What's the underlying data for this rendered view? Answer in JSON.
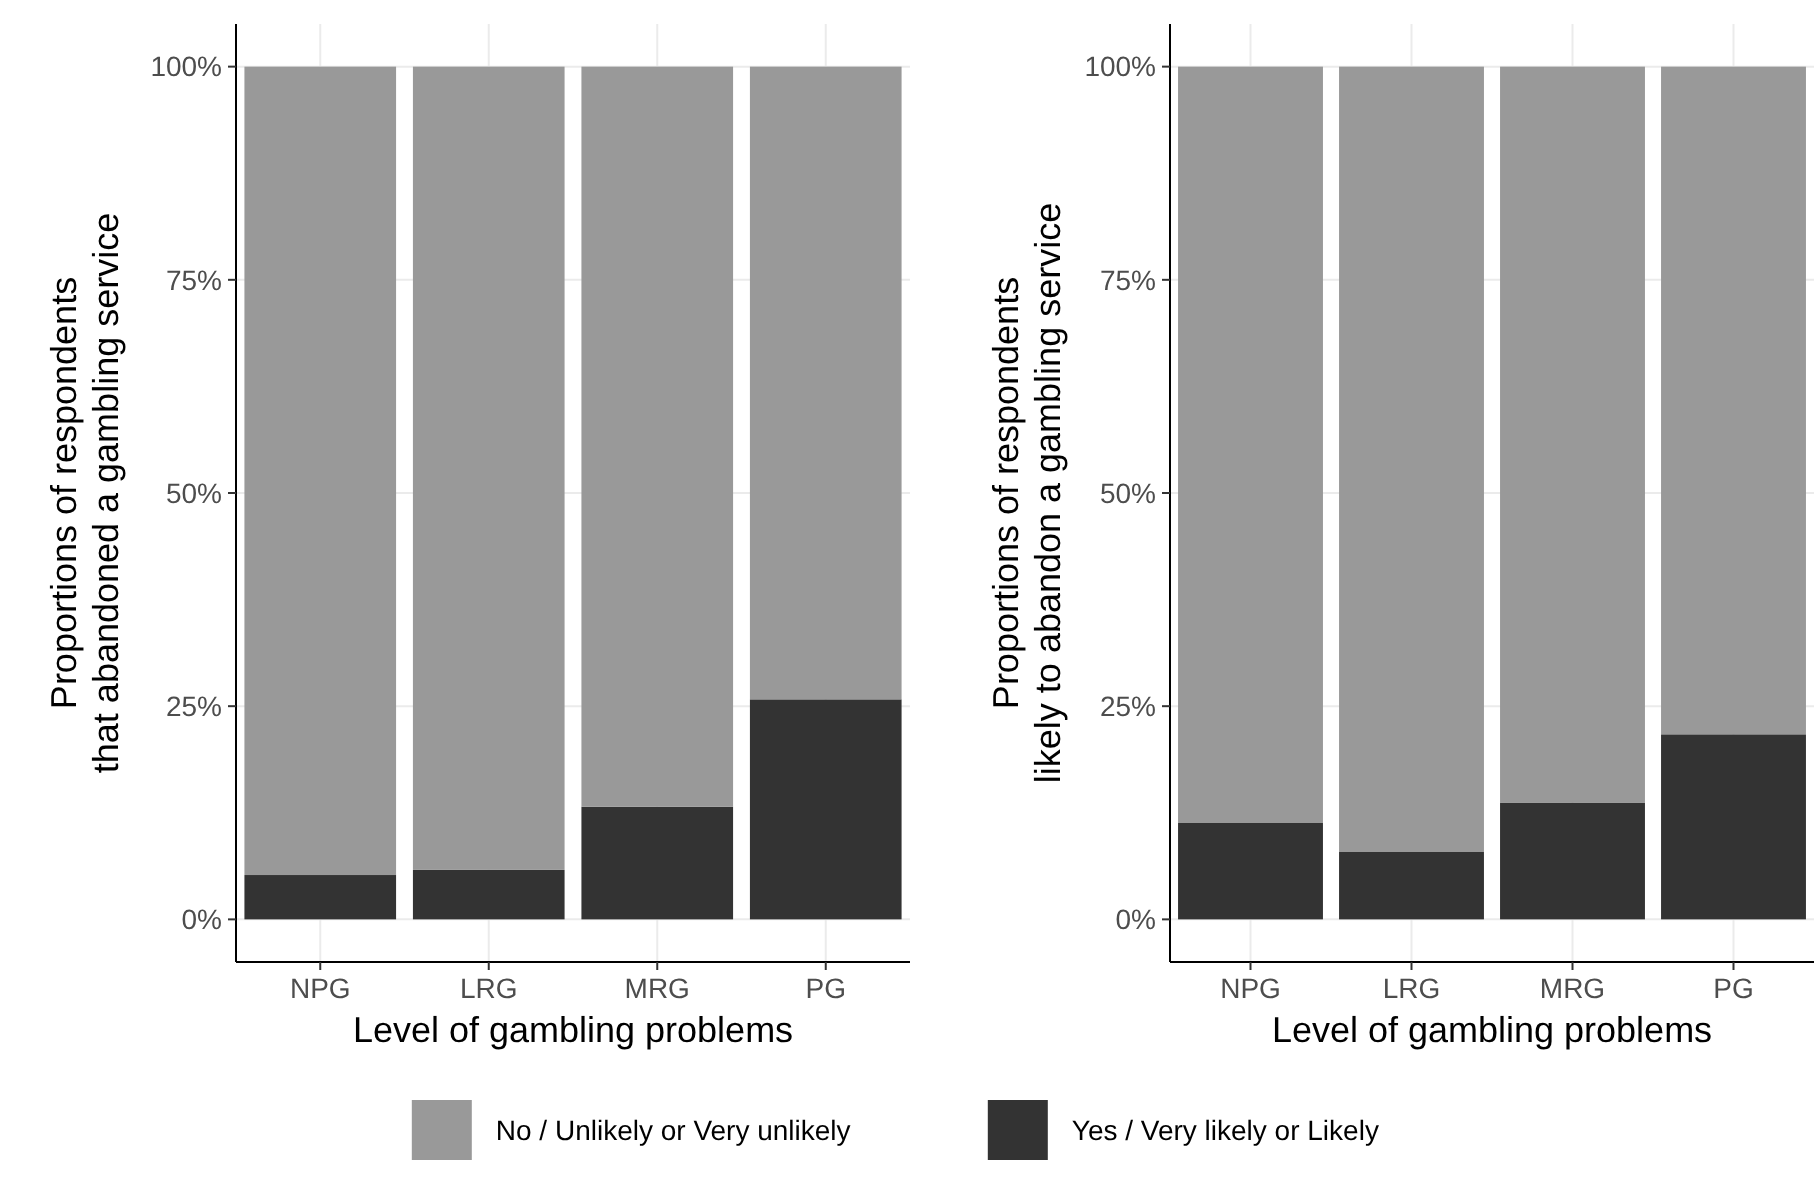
{
  "chart_data": [
    {
      "type": "bar",
      "stacked": true,
      "xlabel": "Level of gambling problems",
      "ylabel": "Proportions of respondents\nthat abandoned a gambling service",
      "categories": [
        "NPG",
        "LRG",
        "MRG",
        "PG"
      ],
      "series": [
        {
          "name": "Yes / Very likely or Likely",
          "color": "#333333",
          "values": [
            5.2,
            5.8,
            13.2,
            25.8
          ]
        },
        {
          "name": "No / Unlikely or Very unlikely",
          "color": "#999999",
          "values": [
            94.8,
            94.2,
            86.8,
            74.2
          ]
        }
      ],
      "ylim": [
        -5,
        105
      ],
      "yticks": [
        {
          "value": 0,
          "label": "0%"
        },
        {
          "value": 25,
          "label": "25%"
        },
        {
          "value": 50,
          "label": "50%"
        },
        {
          "value": 75,
          "label": "75%"
        },
        {
          "value": 100,
          "label": "100%"
        }
      ],
      "grid": true,
      "legend": "bottom"
    },
    {
      "type": "bar",
      "stacked": true,
      "xlabel": "Level of gambling problems",
      "ylabel": "Proportions of respondents\nlikely to abandon a gambling service",
      "categories": [
        "NPG",
        "LRG",
        "MRG",
        "PG"
      ],
      "series": [
        {
          "color": "#333333",
          "values": [
            11.3,
            7.9,
            13.7,
            21.7
          ]
        },
        {
          "color": "#999999",
          "values": [
            88.7,
            92.1,
            86.3,
            78.3
          ]
        }
      ],
      "ylim": [
        -5,
        105
      ],
      "yticks": [
        {
          "value": 0,
          "label": "0%"
        },
        {
          "value": 25,
          "label": "25%"
        },
        {
          "value": 50,
          "label": "50%"
        },
        {
          "value": 75,
          "label": "75%"
        },
        {
          "value": 100,
          "label": "100%"
        }
      ],
      "grid": true
    }
  ]
}
